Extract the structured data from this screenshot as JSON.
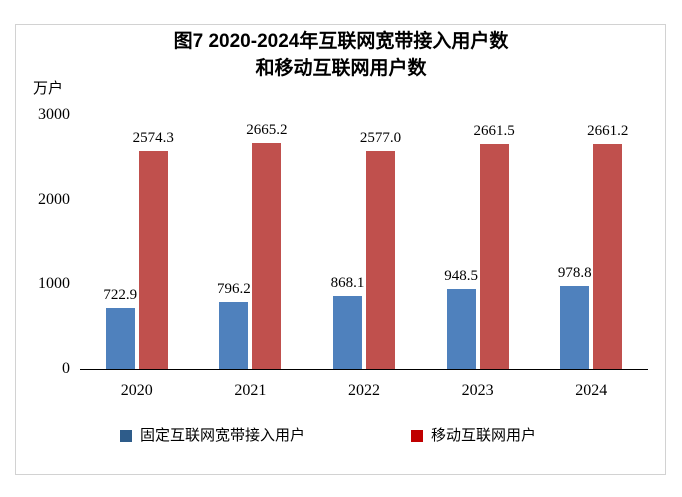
{
  "chart_data": {
    "type": "bar",
    "title_line1": "图7 2020-2024年互联网宽带接入用户数",
    "title_line2": "和移动互联网用户数",
    "unit": "万户",
    "categories": [
      "2020",
      "2021",
      "2022",
      "2023",
      "2024"
    ],
    "series": [
      {
        "key": "fixed-broadband",
        "name": "固定互联网宽带接入用户",
        "values": [
          722.9,
          796.2,
          868.1,
          948.5,
          978.8
        ],
        "labels": [
          "722.9",
          "796.2",
          "868.1",
          "948.5",
          "978.8"
        ],
        "color": "#4F81BD",
        "legend_color": "#2E5C8A"
      },
      {
        "key": "mobile-internet",
        "name": "移动互联网用户",
        "values": [
          2574.3,
          2665.2,
          2577.0,
          2661.5,
          2661.2
        ],
        "labels": [
          "2574.3",
          "2665.2",
          "2577.0",
          "2661.5",
          "2661.2"
        ],
        "color": "#C0504D",
        "legend_color": "#C00000"
      }
    ],
    "ylim": [
      0,
      3000
    ],
    "yticks": [
      0,
      1000,
      2000,
      3000
    ],
    "grid": false,
    "legend_position": "bottom",
    "value_labels": true,
    "colors": {
      "axis": "#000000",
      "border": "#d2d2d2",
      "text": "#000000",
      "background": "#ffffff"
    }
  }
}
